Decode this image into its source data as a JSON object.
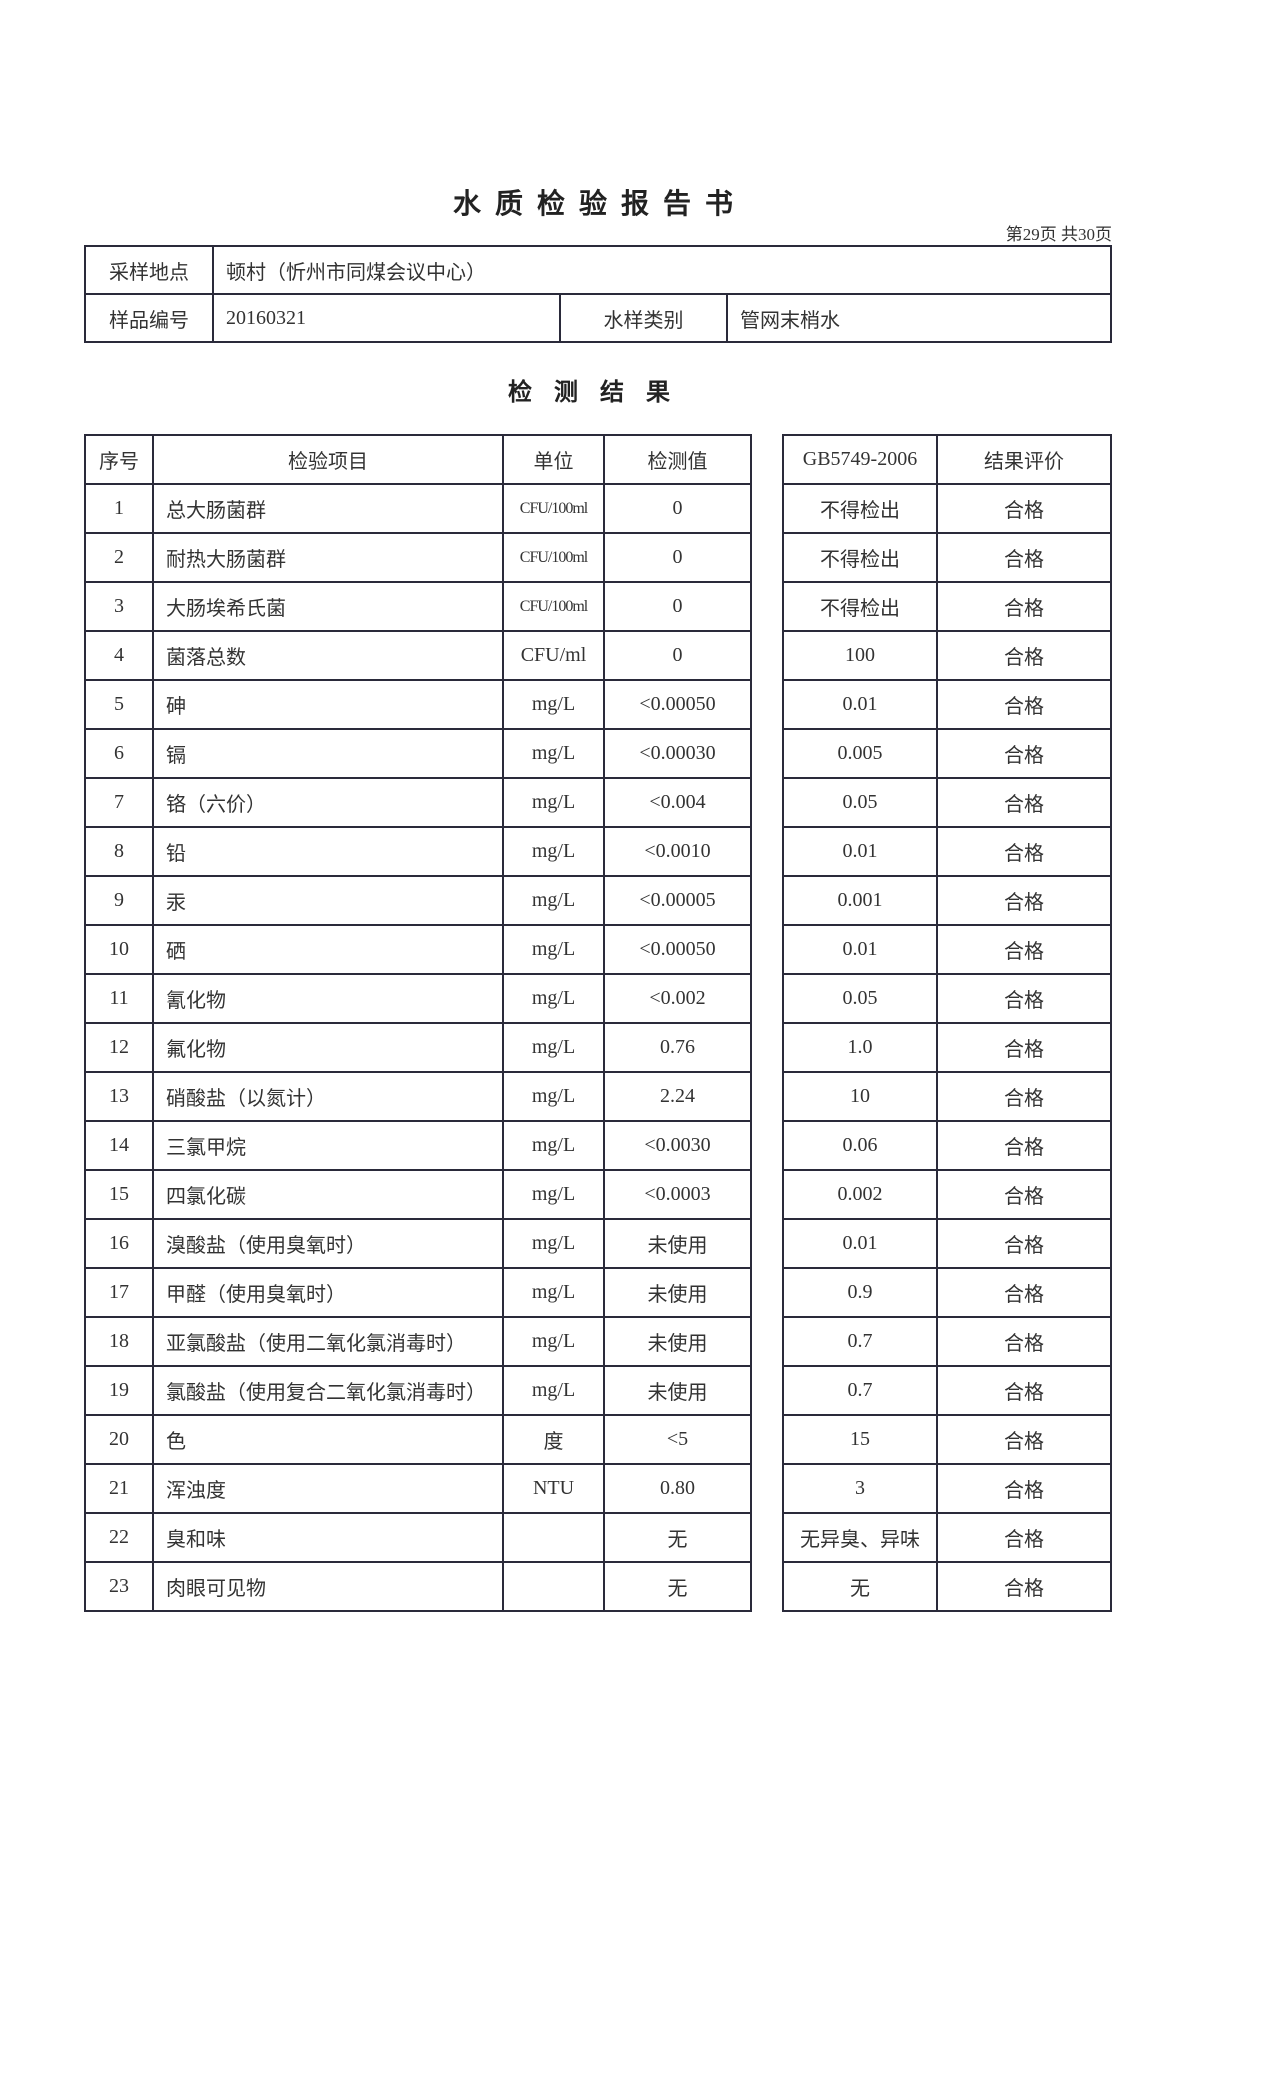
{
  "header": {
    "title": "水质检验报告书",
    "page_indicator": "第29页  共30页"
  },
  "info": {
    "sampling_location_label": "采样地点",
    "sampling_location": "顿村（忻州市同煤会议中心）",
    "sample_id_label": "样品编号",
    "sample_id": "20160321",
    "sample_type_label": "水样类别",
    "sample_type": "管网末梢水"
  },
  "results": {
    "title": "检测结果",
    "columns": [
      "序号",
      "检验项目",
      "单位",
      "检测值",
      "GB5749-2006",
      "结果评价"
    ],
    "rows": [
      [
        "1",
        "总大肠菌群",
        "CFU/100ml",
        "0",
        "不得检出",
        "合格"
      ],
      [
        "2",
        "耐热大肠菌群",
        "CFU/100ml",
        "0",
        "不得检出",
        "合格"
      ],
      [
        "3",
        "大肠埃希氏菌",
        "CFU/100ml",
        "0",
        "不得检出",
        "合格"
      ],
      [
        "4",
        "菌落总数",
        "CFU/ml",
        "0",
        "100",
        "合格"
      ],
      [
        "5",
        "砷",
        "mg/L",
        "<0.00050",
        "0.01",
        "合格"
      ],
      [
        "6",
        "镉",
        "mg/L",
        "<0.00030",
        "0.005",
        "合格"
      ],
      [
        "7",
        "铬（六价）",
        "mg/L",
        "<0.004",
        "0.05",
        "合格"
      ],
      [
        "8",
        "铅",
        "mg/L",
        "<0.0010",
        "0.01",
        "合格"
      ],
      [
        "9",
        "汞",
        "mg/L",
        "<0.00005",
        "0.001",
        "合格"
      ],
      [
        "10",
        "硒",
        "mg/L",
        "<0.00050",
        "0.01",
        "合格"
      ],
      [
        "11",
        "氰化物",
        "mg/L",
        "<0.002",
        "0.05",
        "合格"
      ],
      [
        "12",
        "氟化物",
        "mg/L",
        "0.76",
        "1.0",
        "合格"
      ],
      [
        "13",
        "硝酸盐（以氮计）",
        "mg/L",
        "2.24",
        "10",
        "合格"
      ],
      [
        "14",
        "三氯甲烷",
        "mg/L",
        "<0.0030",
        "0.06",
        "合格"
      ],
      [
        "15",
        "四氯化碳",
        "mg/L",
        "<0.0003",
        "0.002",
        "合格"
      ],
      [
        "16",
        "溴酸盐（使用臭氧时）",
        "mg/L",
        "未使用",
        "0.01",
        "合格"
      ],
      [
        "17",
        "甲醛（使用臭氧时）",
        "mg/L",
        "未使用",
        "0.9",
        "合格"
      ],
      [
        "18",
        "亚氯酸盐（使用二氧化氯消毒时）",
        "mg/L",
        "未使用",
        "0.7",
        "合格"
      ],
      [
        "19",
        "氯酸盐（使用复合二氧化氯消毒时）",
        "mg/L",
        "未使用",
        "0.7",
        "合格"
      ],
      [
        "20",
        "色",
        "度",
        "<5",
        "15",
        "合格"
      ],
      [
        "21",
        "浑浊度",
        "NTU",
        "0.80",
        "3",
        "合格"
      ],
      [
        "22",
        "臭和味",
        "",
        "无",
        "无异臭、异味",
        "合格"
      ],
      [
        "23",
        "肉眼可见物",
        "",
        "无",
        "无",
        "合格"
      ]
    ]
  }
}
